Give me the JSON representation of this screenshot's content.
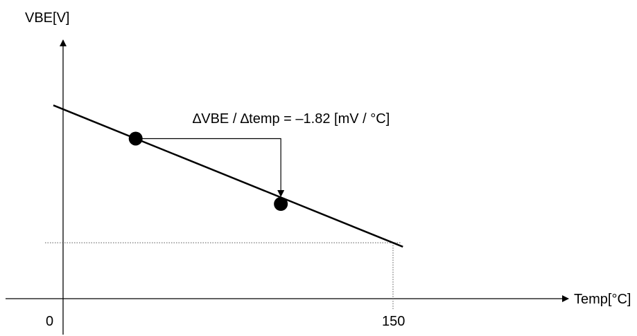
{
  "chart_data": {
    "type": "line",
    "xlabel": "Temp[°C]",
    "ylabel": "VBE[V]",
    "x_ticks": [
      "0",
      "150"
    ],
    "annotation": "∆VBE / ∆temp = –1.82 [mV / °C]",
    "series": [
      {
        "x": [
          0,
          150
        ],
        "y_relative": [
          1.0,
          0.295
        ]
      }
    ],
    "marked_points": [
      {
        "x": 33,
        "y_relative": 0.845
      },
      {
        "x": 99,
        "y_relative": 0.5
      }
    ],
    "dotted_reference": {
      "x": 150,
      "y_relative": 0.295
    },
    "grid": false,
    "colors": {
      "line": "#000000",
      "axes": "#000000",
      "dotted": "#555555"
    }
  }
}
